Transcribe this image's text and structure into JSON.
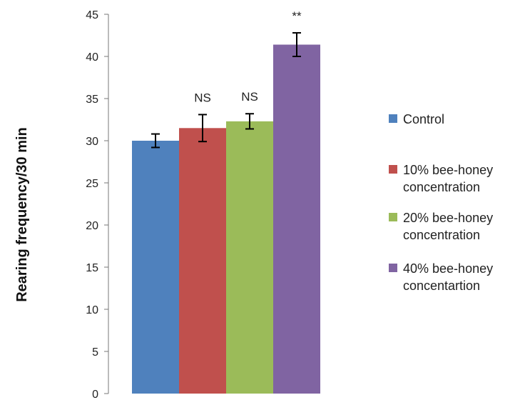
{
  "chart_data": {
    "type": "bar",
    "xlabel": "",
    "ylabel": "Rearing frequency/30 min",
    "ylim": [
      0,
      45
    ],
    "yticks": [
      0,
      5,
      10,
      15,
      20,
      25,
      30,
      35,
      40,
      45
    ],
    "grid": false,
    "legend_position": "right",
    "series": [
      {
        "name": "Control",
        "lines": [
          "Control"
        ],
        "value": 30.0,
        "error": 0.8,
        "color": "#4f81bd",
        "annotation": ""
      },
      {
        "name": "10% bee-honey concentration",
        "lines": [
          "10% bee-honey",
          "concentration"
        ],
        "value": 31.5,
        "error": 1.6,
        "color": "#c0504d",
        "annotation": "NS"
      },
      {
        "name": "20% bee-honey concentration",
        "lines": [
          "20% bee-honey",
          "concentration"
        ],
        "value": 32.3,
        "error": 0.9,
        "color": "#9bbb59",
        "annotation": "NS"
      },
      {
        "name": "40% bee-honey concentartion",
        "lines": [
          "40% bee-honey",
          "concentartion"
        ],
        "value": 41.4,
        "error": 1.4,
        "color": "#8064a2",
        "annotation": "**"
      }
    ]
  }
}
